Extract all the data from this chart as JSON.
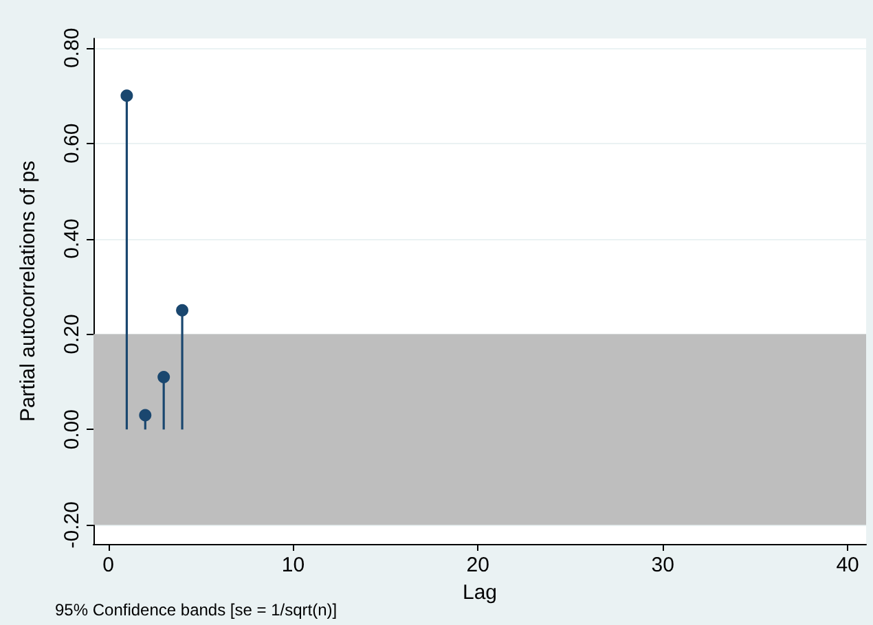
{
  "chart_data": {
    "type": "lollipop",
    "xlabel": "Lag",
    "ylabel": "Partial autocorrelations of ps",
    "annotations": [
      "95% Confidence bands [se = 1/sqrt(n)]"
    ],
    "series": [
      {
        "color": "#1a476f",
        "x": [
          1,
          2,
          3,
          4
        ],
        "values": [
          0.7,
          0.03,
          0.11,
          0.25
        ]
      }
    ],
    "bands": [
      {
        "axis": "y",
        "from": -0.2,
        "to": 0.2,
        "color": "#bebebe"
      }
    ],
    "xlim": [
      -0.8,
      41
    ],
    "xticks": [
      0,
      10,
      20,
      30,
      40
    ],
    "ylim": [
      -0.24,
      0.82
    ],
    "yticks": [
      {
        "value": -0.2,
        "label": "-0.20"
      },
      {
        "value": 0,
        "label": "0.00"
      },
      {
        "value": 0.2,
        "label": "0.20"
      },
      {
        "value": 0.4,
        "label": "0.40"
      },
      {
        "value": 0.6,
        "label": "0.60"
      },
      {
        "value": 0.8,
        "label": "0.80"
      }
    ],
    "grid": "y",
    "marker": "circle"
  }
}
